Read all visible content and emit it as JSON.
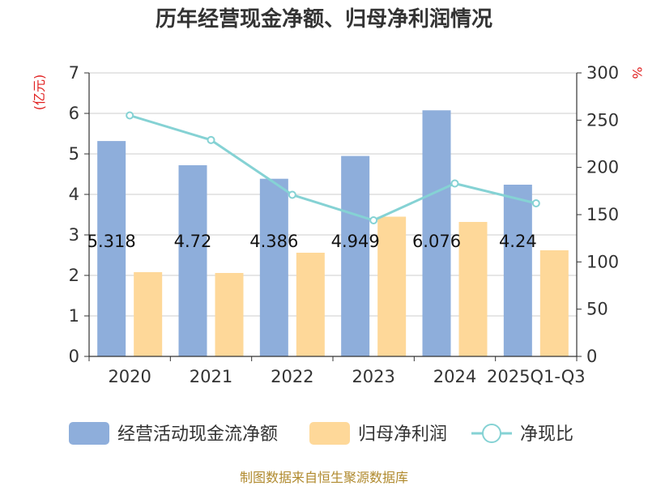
{
  "chart_data": {
    "type": "bar",
    "title": "历年经营现金净额、归母净利润情况",
    "categories": [
      "2020",
      "2021",
      "2022",
      "2023",
      "2024",
      "2025Q1-Q3"
    ],
    "series": [
      {
        "name": "经营活动现金流净额",
        "type": "bar",
        "axis": "left",
        "color": "#8eaedb",
        "values": [
          5.318,
          4.72,
          4.386,
          4.949,
          6.076,
          4.24
        ]
      },
      {
        "name": "归母净利润",
        "type": "bar",
        "axis": "left",
        "color": "#fed899",
        "values": [
          2.08,
          2.06,
          2.56,
          3.45,
          3.32,
          2.62
        ]
      },
      {
        "name": "净现比",
        "type": "line",
        "axis": "right",
        "color": "#85d2d4",
        "values": [
          255,
          229,
          171,
          144,
          183,
          162
        ]
      }
    ],
    "data_labels": [
      "5.318",
      "4.72",
      "4.386",
      "4.949",
      "6.076",
      "4.24"
    ],
    "y_left": {
      "unit": "(亿元)",
      "min": 0,
      "max": 7,
      "ticks": [
        "0",
        "1",
        "2",
        "3",
        "4",
        "5",
        "6",
        "7"
      ]
    },
    "y_right": {
      "unit": "%",
      "min": 0,
      "max": 300,
      "ticks": [
        "0",
        "50",
        "100",
        "150",
        "200",
        "250",
        "300"
      ]
    },
    "grid": true,
    "legend_position": "bottom"
  },
  "source": "制图数据来自恒生聚源数据库"
}
